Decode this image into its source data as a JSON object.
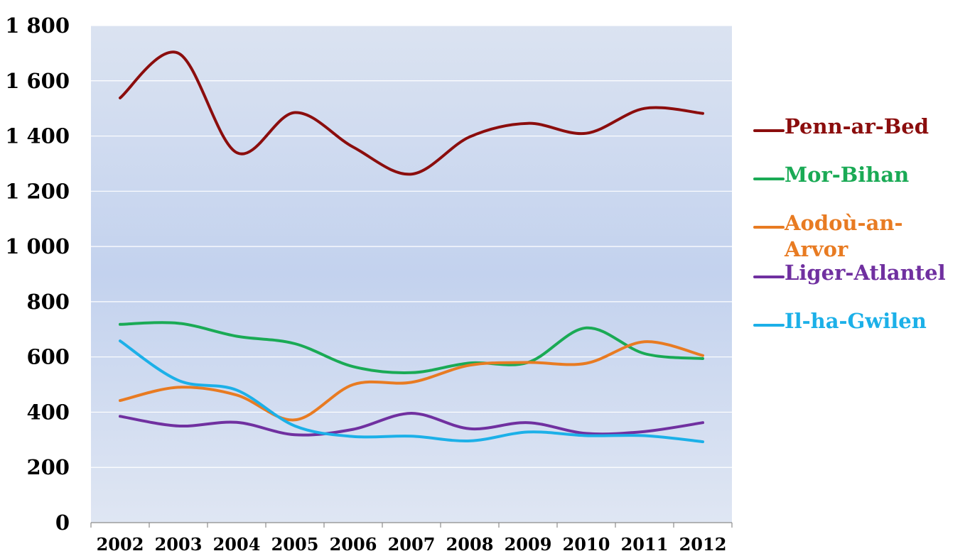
{
  "chart_data": {
    "type": "line",
    "title": "",
    "xlabel": "",
    "ylabel": "",
    "categories": [
      "2002",
      "2003",
      "2004",
      "2005",
      "2006",
      "2007",
      "2008",
      "2009",
      "2010",
      "2011",
      "2012"
    ],
    "ylim": [
      0,
      1800
    ],
    "yticks": [
      0,
      200,
      400,
      600,
      800,
      1000,
      1200,
      1400,
      1600,
      1800
    ],
    "ytick_labels": [
      "0",
      "200",
      "400",
      "600",
      "800",
      "1 000",
      "1 200",
      "1 400",
      "1 600",
      "1 800"
    ],
    "grid": true,
    "legend_position": "right",
    "series": [
      {
        "name": "Penn-ar-Bed",
        "color": "#8b0d0d",
        "values": [
          1538,
          1700,
          1340,
          1485,
          1360,
          1262,
          1397,
          1446,
          1410,
          1500,
          1482
        ]
      },
      {
        "name": "Mor-Bihan",
        "color": "#1aaa55",
        "values": [
          718,
          722,
          675,
          648,
          565,
          543,
          578,
          580,
          705,
          612,
          594
        ]
      },
      {
        "name": "Aodoù-an-Arvor",
        "color": "#e87b22",
        "values": [
          442,
          490,
          462,
          372,
          500,
          508,
          570,
          580,
          577,
          655,
          605
        ]
      },
      {
        "name": "Liger-Atlantel",
        "color": "#7030a0",
        "values": [
          385,
          350,
          363,
          318,
          338,
          396,
          340,
          362,
          323,
          330,
          362
        ]
      },
      {
        "name": "Il-ha-Gwilen",
        "color": "#1cb0e8",
        "values": [
          658,
          515,
          480,
          350,
          312,
          313,
          296,
          328,
          315,
          315,
          293
        ]
      }
    ]
  }
}
